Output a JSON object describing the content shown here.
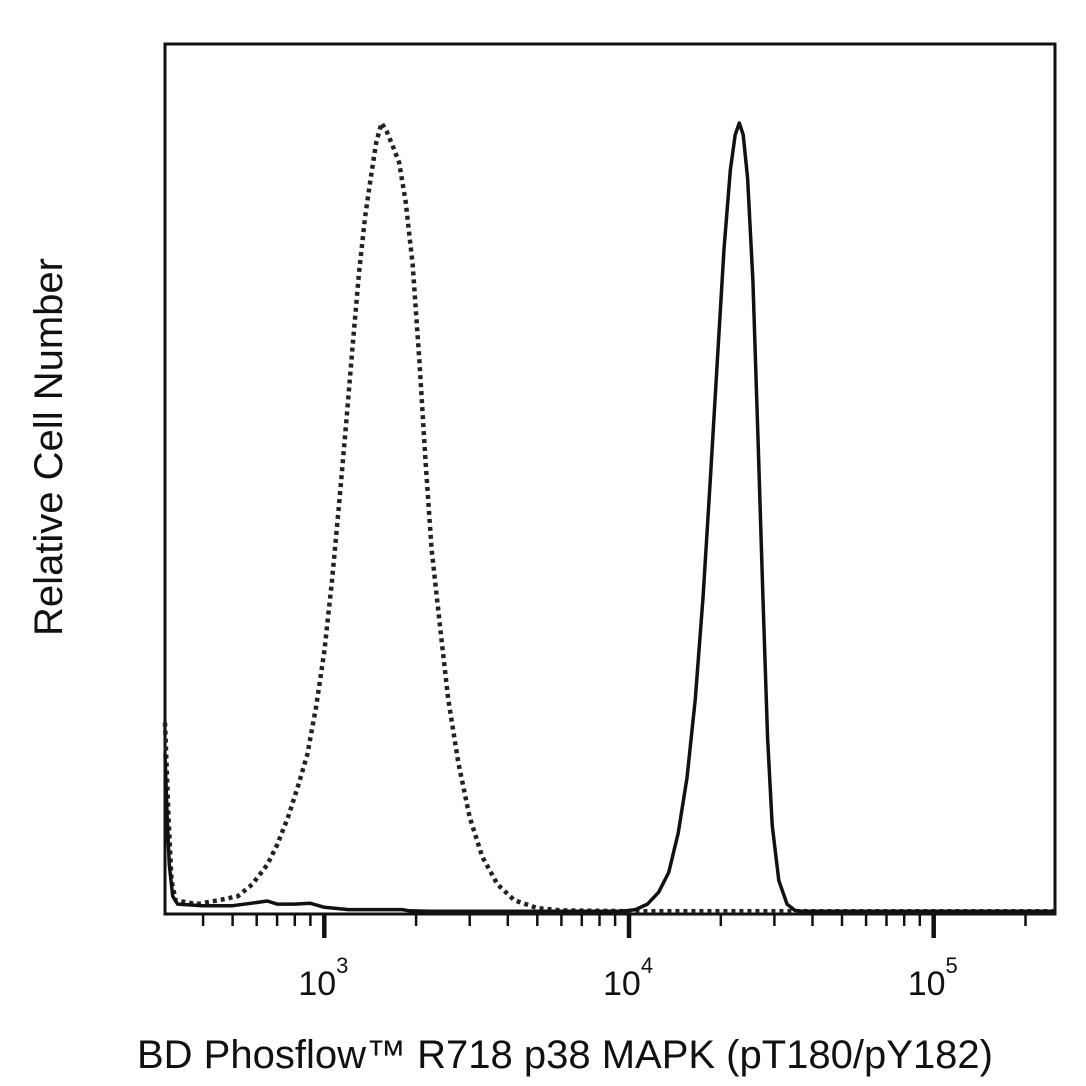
{
  "chart_data": {
    "type": "line",
    "title": "",
    "xlabel": "BD Phosflow™ R718 p38 MAPK (pT180/pY182)",
    "ylabel": "Relative Cell Number",
    "x_scale": "log",
    "xlim": [
      300,
      250000
    ],
    "ylim": [
      0,
      1
    ],
    "grid": false,
    "legend": "none",
    "x_tick_labels": [
      {
        "value": 1000,
        "base": "10",
        "exponent": "3"
      },
      {
        "value": 10000,
        "base": "10",
        "exponent": "4"
      },
      {
        "value": 100000,
        "base": "10",
        "exponent": "5"
      }
    ],
    "minor_ticks": [
      400,
      500,
      600,
      700,
      800,
      900,
      2000,
      3000,
      4000,
      5000,
      6000,
      7000,
      8000,
      9000,
      20000,
      30000,
      40000,
      50000,
      60000,
      70000,
      80000,
      90000,
      200000
    ],
    "series": [
      {
        "style": "dotted",
        "color": "#222222",
        "points": [
          [
            300,
            0.24
          ],
          [
            308,
            0.12
          ],
          [
            315,
            0.04
          ],
          [
            325,
            0.015
          ],
          [
            380,
            0.01
          ],
          [
            450,
            0.015
          ],
          [
            520,
            0.02
          ],
          [
            580,
            0.035
          ],
          [
            650,
            0.06
          ],
          [
            700,
            0.085
          ],
          [
            760,
            0.12
          ],
          [
            820,
            0.16
          ],
          [
            880,
            0.2
          ],
          [
            940,
            0.26
          ],
          [
            1000,
            0.33
          ],
          [
            1060,
            0.42
          ],
          [
            1120,
            0.52
          ],
          [
            1180,
            0.62
          ],
          [
            1240,
            0.72
          ],
          [
            1300,
            0.81
          ],
          [
            1360,
            0.88
          ],
          [
            1420,
            0.93
          ],
          [
            1480,
            0.975
          ],
          [
            1540,
            1.0
          ],
          [
            1600,
            0.99
          ],
          [
            1680,
            0.97
          ],
          [
            1760,
            0.95
          ],
          [
            1850,
            0.9
          ],
          [
            1950,
            0.82
          ],
          [
            2050,
            0.7
          ],
          [
            2150,
            0.57
          ],
          [
            2250,
            0.46
          ],
          [
            2400,
            0.36
          ],
          [
            2550,
            0.27
          ],
          [
            2750,
            0.19
          ],
          [
            3000,
            0.12
          ],
          [
            3300,
            0.07
          ],
          [
            3700,
            0.035
          ],
          [
            4200,
            0.015
          ],
          [
            5000,
            0.005
          ],
          [
            6000,
            0.002
          ],
          [
            10000,
            0.001
          ],
          [
            30000,
            0.001
          ],
          [
            250000,
            0.001
          ]
        ]
      },
      {
        "style": "solid",
        "color": "#111111",
        "points": [
          [
            300,
            0.2
          ],
          [
            305,
            0.12
          ],
          [
            310,
            0.06
          ],
          [
            318,
            0.02
          ],
          [
            330,
            0.01
          ],
          [
            400,
            0.008
          ],
          [
            500,
            0.008
          ],
          [
            600,
            0.012
          ],
          [
            650,
            0.014
          ],
          [
            700,
            0.01
          ],
          [
            800,
            0.01
          ],
          [
            900,
            0.011
          ],
          [
            1000,
            0.006
          ],
          [
            1200,
            0.003
          ],
          [
            1800,
            0.003
          ],
          [
            1900,
            0.0015
          ],
          [
            2200,
            0.001
          ],
          [
            9500,
            0.001
          ],
          [
            10500,
            0.003
          ],
          [
            11500,
            0.01
          ],
          [
            12500,
            0.025
          ],
          [
            13500,
            0.05
          ],
          [
            14500,
            0.1
          ],
          [
            15500,
            0.17
          ],
          [
            16500,
            0.27
          ],
          [
            17500,
            0.4
          ],
          [
            18500,
            0.55
          ],
          [
            19500,
            0.7
          ],
          [
            20500,
            0.84
          ],
          [
            21500,
            0.94
          ],
          [
            22300,
            0.985
          ],
          [
            23000,
            1.0
          ],
          [
            23700,
            0.985
          ],
          [
            24500,
            0.93
          ],
          [
            25500,
            0.8
          ],
          [
            26500,
            0.6
          ],
          [
            27500,
            0.4
          ],
          [
            28500,
            0.22
          ],
          [
            29500,
            0.11
          ],
          [
            31000,
            0.04
          ],
          [
            33000,
            0.01
          ],
          [
            35000,
            0.002
          ],
          [
            37000,
            0.001
          ],
          [
            250000,
            0.001
          ]
        ]
      }
    ]
  }
}
